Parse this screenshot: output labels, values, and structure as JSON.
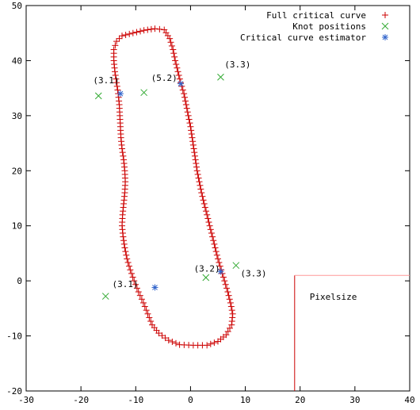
{
  "chart_data": {
    "type": "scatter",
    "title": "",
    "xlabel": "",
    "ylabel": "",
    "xlim": [
      -30,
      40
    ],
    "ylim": [
      -20,
      50
    ],
    "x_ticks": [
      -30,
      -20,
      -10,
      0,
      10,
      20,
      30,
      40
    ],
    "y_ticks": [
      -20,
      -10,
      0,
      10,
      20,
      30,
      40,
      50
    ],
    "grid": false,
    "legend_position": "top-right",
    "legend": [
      {
        "label": "Full critical curve",
        "marker": "+",
        "color": "#cc0000"
      },
      {
        "label": "Knot positions",
        "marker": "x",
        "color": "#33aa33"
      },
      {
        "label": "Critical curve estimator",
        "marker": "*",
        "color": "#3366cc"
      }
    ],
    "series": [
      {
        "name": "Full critical curve",
        "marker": "+",
        "color": "#cc0000",
        "points": [
          [
            -12.5,
            44.5
          ],
          [
            -10.5,
            45
          ],
          [
            -8.5,
            45.5
          ],
          [
            -6.5,
            45.8
          ],
          [
            -4.8,
            45.6
          ],
          [
            -3.8,
            44
          ],
          [
            -3.2,
            42
          ],
          [
            -2.8,
            40
          ],
          [
            -2.3,
            38
          ],
          [
            -1.8,
            36
          ],
          [
            -1.2,
            34
          ],
          [
            -0.8,
            32
          ],
          [
            -0.4,
            30
          ],
          [
            0,
            28
          ],
          [
            0.3,
            26
          ],
          [
            0.6,
            24
          ],
          [
            0.9,
            22
          ],
          [
            1.2,
            20
          ],
          [
            1.6,
            18
          ],
          [
            2,
            16
          ],
          [
            2.5,
            14
          ],
          [
            3,
            12
          ],
          [
            3.5,
            10
          ],
          [
            4,
            8
          ],
          [
            4.5,
            6
          ],
          [
            5,
            4
          ],
          [
            5.6,
            2
          ],
          [
            6.2,
            0
          ],
          [
            6.8,
            -2
          ],
          [
            7.3,
            -4
          ],
          [
            7.7,
            -6
          ],
          [
            7.5,
            -8
          ],
          [
            6.5,
            -9.8
          ],
          [
            5,
            -11
          ],
          [
            3,
            -11.7
          ],
          [
            0.5,
            -11.7
          ],
          [
            -2,
            -11.6
          ],
          [
            -4,
            -10.8
          ],
          [
            -5.8,
            -9.5
          ],
          [
            -7,
            -8
          ],
          [
            -7.8,
            -6
          ],
          [
            -8.6,
            -4
          ],
          [
            -9.5,
            -2
          ],
          [
            -10.3,
            0
          ],
          [
            -11,
            2
          ],
          [
            -11.6,
            4
          ],
          [
            -12,
            6
          ],
          [
            -12.3,
            8
          ],
          [
            -12.5,
            10
          ],
          [
            -12.4,
            12
          ],
          [
            -12.2,
            14
          ],
          [
            -12,
            16
          ],
          [
            -11.9,
            18
          ],
          [
            -12,
            20
          ],
          [
            -12.2,
            22
          ],
          [
            -12.5,
            24
          ],
          [
            -12.7,
            26
          ],
          [
            -12.8,
            28
          ],
          [
            -12.9,
            30
          ],
          [
            -13,
            32
          ],
          [
            -13.2,
            34
          ],
          [
            -13.5,
            36
          ],
          [
            -13.8,
            38
          ],
          [
            -14,
            40
          ],
          [
            -14,
            42
          ],
          [
            -13.5,
            43.5
          ]
        ]
      },
      {
        "name": "Knot positions",
        "marker": "x",
        "color": "#33aa33",
        "points": [
          [
            -16.8,
            33.6
          ],
          [
            -8.5,
            34.2
          ],
          [
            5.5,
            37
          ],
          [
            -15.5,
            -2.8
          ],
          [
            2.8,
            0.6
          ],
          [
            8.3,
            2.8
          ]
        ]
      },
      {
        "name": "Critical curve estimator",
        "marker": "*",
        "color": "#3366cc",
        "points": [
          [
            -12.8,
            34
          ],
          [
            -1.8,
            35.8
          ],
          [
            5.5,
            1.7
          ],
          [
            -6.5,
            -1.2
          ]
        ]
      }
    ],
    "annotations": [
      {
        "text": "(3.1)",
        "x": -17.8,
        "y": 35.9
      },
      {
        "text": "(5.2)",
        "x": -7.2,
        "y": 36.3
      },
      {
        "text": "(3.3)",
        "x": 6.2,
        "y": 38.8
      },
      {
        "text": "(3.1)",
        "x": -14.3,
        "y": -1.1
      },
      {
        "text": "(3.2)",
        "x": 0.6,
        "y": 1.7
      },
      {
        "text": "(3.3)",
        "x": 9.1,
        "y": 0.8
      }
    ],
    "inset": {
      "label": "Pixelsize",
      "x_from": 19,
      "y_to": 1
    }
  }
}
